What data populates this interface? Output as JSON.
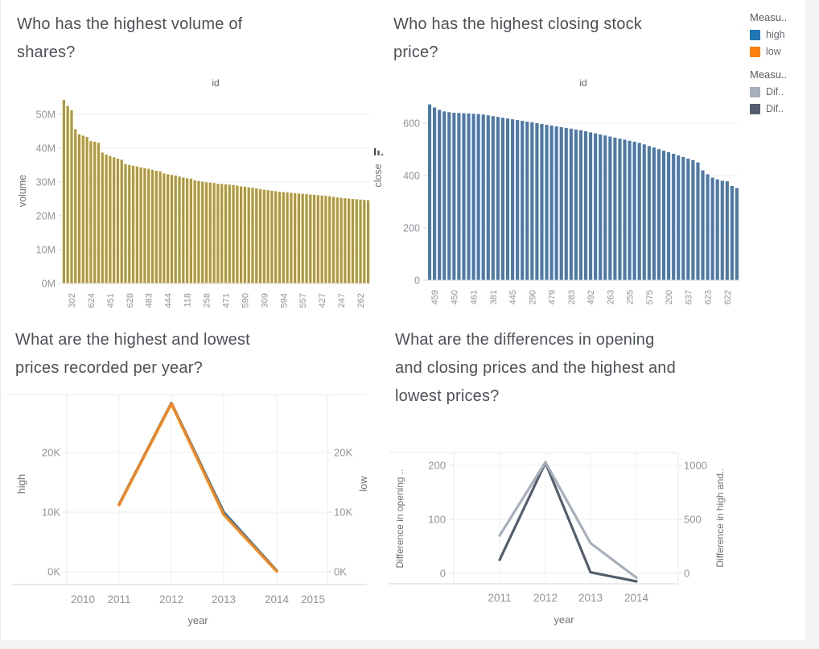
{
  "window": {
    "background": "#f4f4f4",
    "canvas_background": "#ffffff"
  },
  "legend": {
    "groups": [
      {
        "title": "Measu..",
        "items": [
          {
            "label": "high",
            "color": "#1f77b4"
          },
          {
            "label": "low",
            "color": "#ff7f0e"
          }
        ]
      },
      {
        "title": "Measu..",
        "items": [
          {
            "label": "Dif..",
            "color": "#a8afbc"
          },
          {
            "label": "Dif..",
            "color": "#545e6e"
          }
        ]
      }
    ]
  },
  "chart_data": [
    {
      "type": "bar",
      "title": "Who has the highest volume of shares?",
      "column_header": "id",
      "xlabel": "id",
      "ylabel": "volume",
      "bar_color": "#b0993c",
      "y_ticks": [
        "0M",
        "10M",
        "20M",
        "30M",
        "40M",
        "50M"
      ],
      "y_tick_values": [
        0,
        10,
        20,
        30,
        40,
        50
      ],
      "ylim_millions": [
        0,
        56
      ],
      "grid": true,
      "legend_position": "none",
      "x_tick_labels": [
        "302",
        "624",
        "451",
        "628",
        "483",
        "444",
        "118",
        "258",
        "471",
        "590",
        "309",
        "594",
        "557",
        "427",
        "247",
        "262"
      ],
      "values_millions": [
        54.3,
        52.5,
        51.2,
        45.6,
        44.1,
        43.7,
        43.3,
        42.1,
        41.9,
        41.6,
        38.7,
        38.1,
        37.7,
        37.3,
        36.9,
        36.6,
        35.3,
        35.0,
        34.8,
        34.6,
        34.3,
        34.1,
        33.9,
        33.6,
        33.3,
        33.1,
        32.5,
        32.3,
        32.1,
        31.9,
        31.6,
        31.3,
        31.1,
        31.0,
        30.5,
        30.3,
        30.1,
        29.9,
        29.8,
        29.7,
        29.5,
        29.4,
        29.3,
        29.2,
        29.1,
        28.9,
        28.7,
        28.6,
        28.4,
        28.3,
        28.1,
        27.9,
        27.7,
        27.6,
        27.4,
        27.3,
        27.1,
        27.0,
        26.9,
        26.8,
        26.7,
        26.6,
        26.5,
        26.4,
        26.3,
        26.2,
        26.1,
        26.0,
        25.9,
        25.8,
        25.6,
        25.4,
        25.3,
        25.2,
        25.1,
        25.0,
        24.9,
        24.8,
        24.7,
        24.6
      ]
    },
    {
      "type": "bar",
      "title": "Who has the highest closing stock price?",
      "column_header": "id",
      "xlabel": "id",
      "ylabel": "close",
      "bar_color": "#4e79a7",
      "sort_indicator": "descending",
      "y_ticks": [
        "0",
        "200",
        "400",
        "600"
      ],
      "y_tick_values": [
        0,
        200,
        400,
        600
      ],
      "ylim": [
        0,
        700
      ],
      "grid": true,
      "legend_position": "none",
      "x_tick_labels": [
        "459",
        "450",
        "461",
        "381",
        "445",
        "290",
        "479",
        "283",
        "492",
        "263",
        "255",
        "575",
        "200",
        "637",
        "623",
        "622"
      ],
      "values": [
        672,
        660,
        651,
        645,
        642,
        640,
        639,
        638,
        637,
        636,
        635,
        633,
        630,
        627,
        624,
        621,
        618,
        615,
        612,
        609,
        606,
        603,
        600,
        597,
        594,
        591,
        588,
        585,
        582,
        579,
        576,
        573,
        569,
        565,
        561,
        557,
        553,
        549,
        545,
        541,
        537,
        533,
        529,
        525,
        519,
        513,
        507,
        501,
        495,
        489,
        483,
        477,
        471,
        465,
        459,
        450,
        420,
        405,
        392,
        385,
        380,
        378,
        360,
        352
      ]
    },
    {
      "type": "line",
      "title": "What are the highest and lowest prices recorded per year?",
      "xlabel": "year",
      "x": [
        2011,
        2012,
        2013,
        2014
      ],
      "x_tick_labels": [
        "2010",
        "2011",
        "2012",
        "2013",
        "2014",
        "2015"
      ],
      "grid": true,
      "left_axis": {
        "label": "high",
        "ticks": [
          "0K",
          "10K",
          "20K"
        ],
        "tick_values": [
          0,
          10000,
          20000
        ]
      },
      "right_axis": {
        "label": "low",
        "ticks": [
          "0K",
          "10K",
          "20K"
        ],
        "tick_values": [
          0,
          10000,
          20000
        ]
      },
      "series": [
        {
          "name": "high",
          "axis": "left",
          "color": "#2176b5",
          "values": [
            11300,
            28300,
            10000,
            150
          ]
        },
        {
          "name": "low",
          "axis": "right",
          "color": "#f98414",
          "values": [
            11200,
            28200,
            9600,
            60
          ]
        }
      ]
    },
    {
      "type": "line",
      "title": "What are the differences in opening and closing prices and the highest and lowest prices?",
      "xlabel": "year",
      "x": [
        2011,
        2012,
        2013,
        2014
      ],
      "x_tick_labels": [
        "2011",
        "2012",
        "2013",
        "2014"
      ],
      "grid": true,
      "left_axis": {
        "label": "Difference in opening ..",
        "ticks": [
          "0",
          "100",
          "200"
        ],
        "tick_values": [
          0,
          100,
          200
        ]
      },
      "right_axis": {
        "label": "Difference in high and..",
        "ticks": [
          "0",
          "500",
          "1000"
        ],
        "tick_values": [
          0,
          500,
          1000
        ]
      },
      "series": [
        {
          "name": "Difference in opening ..",
          "axis": "left",
          "color": "#545e6e",
          "values": [
            25,
            205,
            2,
            -15
          ]
        },
        {
          "name": "Difference in high and..",
          "axis": "right",
          "color": "#a8afbc",
          "values": [
            350,
            1030,
            280,
            -40
          ]
        }
      ]
    }
  ]
}
